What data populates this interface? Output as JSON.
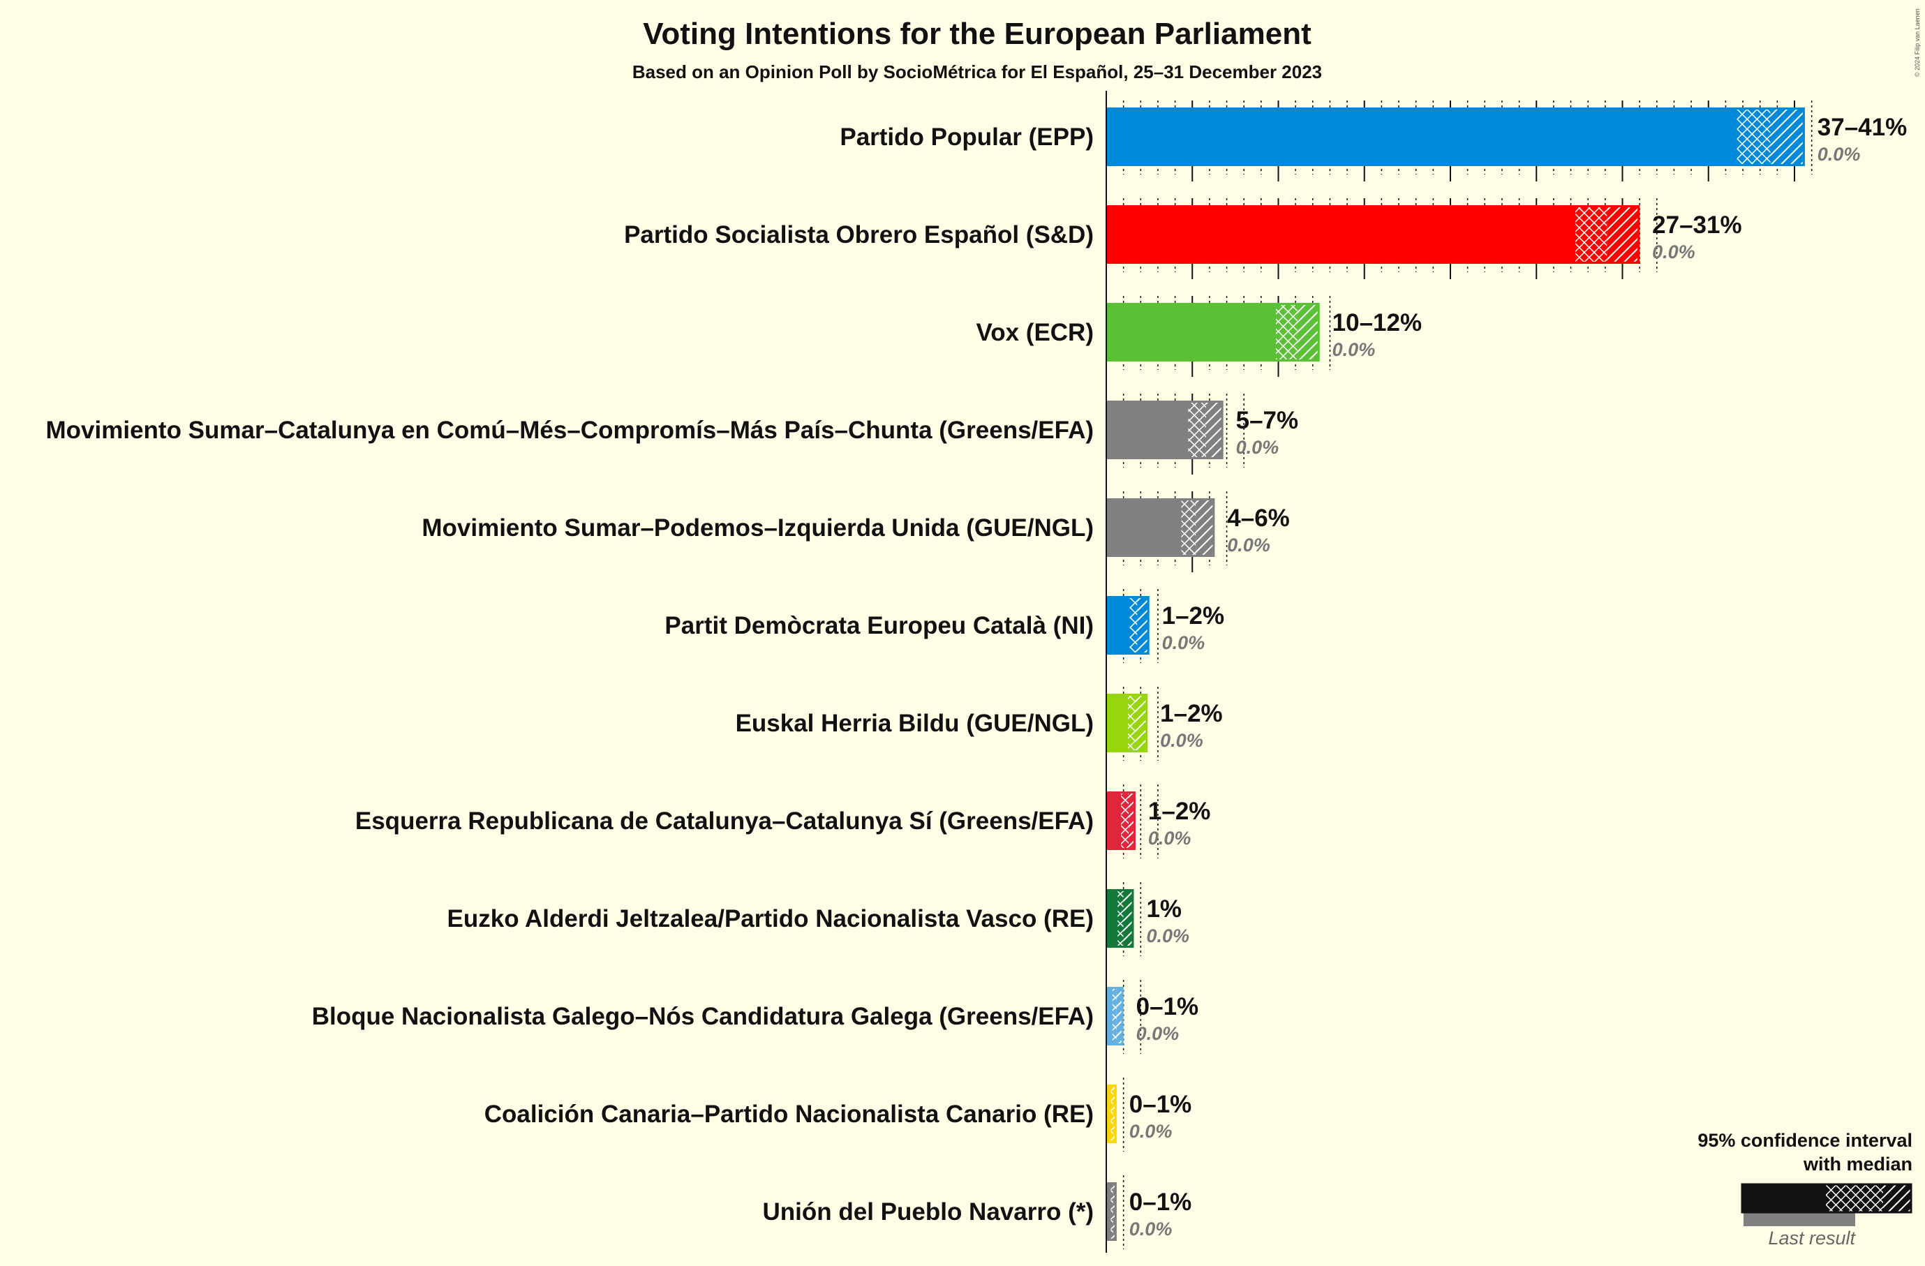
{
  "chart_data": {
    "type": "bar",
    "title": "Voting Intentions for the European Parliament",
    "subtitle": "Based on an Opinion Poll by SocioMétrica for El Español, 25–31 December 2023",
    "copyright": "© 2024 Filip van Laenen",
    "parties": [
      {
        "name": "Partido Popular (EPP)",
        "range_label": "37–41%",
        "last_label": "0.0%",
        "low": 36.6,
        "median": 38.6,
        "high": 40.6,
        "last": 0.0,
        "color": "#0089d9"
      },
      {
        "name": "Partido Socialista Obrero Español (S&D)",
        "range_label": "27–31%",
        "last_label": "0.0%",
        "low": 27.2,
        "median": 29.1,
        "high": 31.0,
        "last": 0.0,
        "color": "#ff0000"
      },
      {
        "name": "Vox (ECR)",
        "range_label": "10–12%",
        "last_label": "0.0%",
        "low": 9.8,
        "median": 11.1,
        "high": 12.4,
        "last": 0.0,
        "color": "#5ac035"
      },
      {
        "name": "Movimiento Sumar–Catalunya en Comú–Més–Compromís–Más País–Chunta (Greens/EFA)",
        "range_label": "5–7%",
        "last_label": "0.0%",
        "low": 4.7,
        "median": 5.8,
        "high": 6.8,
        "last": 0.0,
        "color": "#808080"
      },
      {
        "name": "Movimiento Sumar–Podemos–Izquierda Unida (GUE/NGL)",
        "range_label": "4–6%",
        "last_label": "0.0%",
        "low": 4.3,
        "median": 5.2,
        "high": 6.3,
        "last": 0.0,
        "color": "#808080"
      },
      {
        "name": "Partit Demòcrata Europeu Català (NI)",
        "range_label": "1–2%",
        "last_label": "0.0%",
        "low": 1.3,
        "median": 1.8,
        "high": 2.5,
        "last": 0.0,
        "color": "#0089d9"
      },
      {
        "name": "Euskal Herria Bildu (GUE/NGL)",
        "range_label": "1–2%",
        "last_label": "0.0%",
        "low": 1.2,
        "median": 1.7,
        "high": 2.4,
        "last": 0.0,
        "color": "#97d60a"
      },
      {
        "name": "Esquerra Republicana de Catalunya–Catalunya Sí (Greens/EFA)",
        "range_label": "1–2%",
        "last_label": "0.0%",
        "low": 0.8,
        "median": 1.3,
        "high": 1.7,
        "last": 0.0,
        "color": "#e1263c"
      },
      {
        "name": "Euzko Alderdi Jeltzalea/Partido Nacionalista Vasco (RE)",
        "range_label": "1%",
        "last_label": "0.0%",
        "low": 0.6,
        "median": 1.0,
        "high": 1.6,
        "last": 0.0,
        "color": "#12793b"
      },
      {
        "name": "Bloque Nacionalista Galego–Nós Candidatura Galega (Greens/EFA)",
        "range_label": "0–1%",
        "last_label": "0.0%",
        "low": 0.3,
        "median": 0.6,
        "high": 1.0,
        "last": 0.0,
        "color": "#63b1e0"
      },
      {
        "name": "Coalición Canaria–Partido Nacionalista Canario (RE)",
        "range_label": "0–1%",
        "last_label": "0.0%",
        "low": 0.2,
        "median": 0.4,
        "high": 0.6,
        "last": 0.0,
        "color": "#ffd700"
      },
      {
        "name": "Unión del Pueblo Navarro (*)",
        "range_label": "0–1%",
        "last_label": "0.0%",
        "low": 0.2,
        "median": 0.4,
        "high": 0.6,
        "last": 0.0,
        "color": "#808080"
      }
    ],
    "legend": {
      "line1": "95% confidence interval",
      "line2": "with median",
      "last_result": "Last result"
    }
  }
}
